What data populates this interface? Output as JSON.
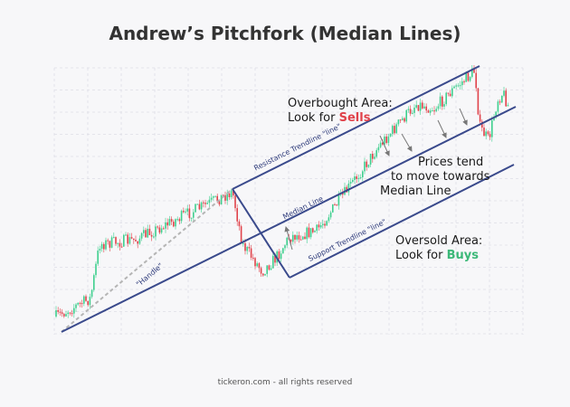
{
  "header": {
    "title": "Andrew’s Pitchfork  (Median Lines)"
  },
  "labels": {
    "resistance": "Resistance Trendline \"line\"",
    "median": "Median Line",
    "support": "Support Trendline \"line\"",
    "handle": "\"Handle\""
  },
  "overbought": {
    "line1": "Overbought Area:",
    "prefix": "Look for",
    "highlight": "Sells"
  },
  "prices": {
    "line1": "Prices tend",
    "line2": "to move towards",
    "line3": "Median Line"
  },
  "oversold": {
    "line1": "Oversold Area:",
    "prefix": "Look for",
    "highlight": "Buys"
  },
  "footer": {
    "text": "tickeron.com - all rights reserved"
  }
}
